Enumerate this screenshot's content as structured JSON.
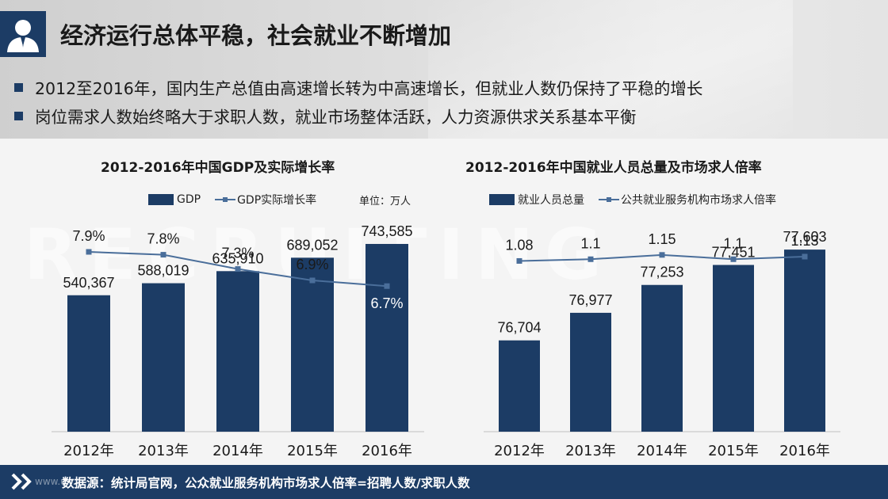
{
  "header": {
    "title": "经济运行总体平稳，社会就业不断增加",
    "bullets": [
      "2012至2016年，国内生产总值由高速增长转为中高速增长，但就业人数仍保持了平稳的增长",
      "岗位需求人数始终略大于求职人数，就业市场整体活跃，人力资源供求关系基本平衡"
    ]
  },
  "watermark": "RECRUITING",
  "footer": {
    "url": "www.u...",
    "note": "数据源：统计局官网，公众就业服务机构市场求人倍率=招聘人数/求职人数"
  },
  "colors": {
    "bar": "#1c3c65",
    "line": "#4a6e9a",
    "footer": "#1c3c65"
  },
  "chart_data": [
    {
      "type": "bar",
      "title": "2012-2016年中国GDP及实际增长率",
      "unit_label": "单位：万人",
      "categories": [
        "2012年",
        "2013年",
        "2014年",
        "2015年",
        "2016年"
      ],
      "series": [
        {
          "name": "GDP",
          "kind": "bar",
          "values": [
            540367,
            588019,
            635910,
            689052,
            743585
          ],
          "labels": [
            "540,367",
            "588,019",
            "635,910",
            "689,052",
            "743,585"
          ]
        },
        {
          "name": "GDP实际增长率",
          "kind": "line",
          "values": [
            7.9,
            7.8,
            7.3,
            6.9,
            6.7
          ],
          "labels": [
            "7.9%",
            "7.8%",
            "7.3%",
            "6.9%",
            "6.7%"
          ]
        }
      ],
      "bar_range": [
        0,
        800000
      ],
      "line_range": [
        5.9,
        8.4
      ]
    },
    {
      "type": "bar",
      "title": "2012-2016年中国就业人员总量及市场求人倍率",
      "categories": [
        "2012年",
        "2013年",
        "2014年",
        "2015年",
        "2016年"
      ],
      "series": [
        {
          "name": "就业人员总量",
          "kind": "bar",
          "values": [
            76704,
            76977,
            77253,
            77451,
            77603
          ],
          "labels": [
            "76,704",
            "76,977",
            "77,253",
            "77,451",
            "77,603"
          ]
        },
        {
          "name": "公共就业服务机构市场求人倍率",
          "kind": "line",
          "values": [
            1.08,
            1.1,
            1.15,
            1.1,
            1.13
          ],
          "labels": [
            "1.08",
            "1.1",
            "1.15",
            "1.1",
            "1.13"
          ]
        }
      ],
      "bar_range": [
        75800,
        77800
      ],
      "line_range": [
        0.8,
        1.35
      ]
    }
  ]
}
